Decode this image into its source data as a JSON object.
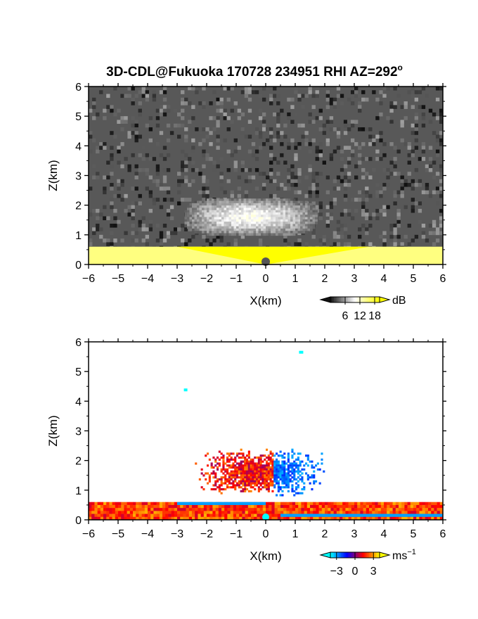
{
  "title": "3D-CDL@Fukuoka 170728 234951 RHI AZ=292",
  "title_superscript": "o",
  "chart_data": [
    {
      "type": "heatmap",
      "panel": "reflectivity",
      "xlabel": "X(km)",
      "ylabel": "Z(km)",
      "xlim": [
        -6,
        6
      ],
      "ylim": [
        0,
        6
      ],
      "xticks": [
        "-6",
        "-5",
        "-4",
        "-3",
        "-2",
        "-1",
        "0",
        "1",
        "2",
        "3",
        "4",
        "5",
        "6"
      ],
      "yticks": [
        "0",
        "1",
        "2",
        "3",
        "4",
        "5",
        "6"
      ],
      "colorbar": {
        "unit": "dB",
        "ticks": [
          "6",
          "12",
          "18"
        ],
        "range": [
          0,
          20
        ],
        "colors": [
          "#111111",
          "#ffffff",
          "#ffff00"
        ]
      },
      "features": [
        {
          "name": "noise background",
          "x": [
            -6,
            6
          ],
          "z": [
            0,
            6
          ],
          "value_db": 3
        },
        {
          "name": "cloud layer",
          "x": [
            -3,
            2
          ],
          "z": [
            0.9,
            2.3
          ],
          "value_db": 10
        },
        {
          "name": "boundary layer",
          "x": [
            -6,
            6
          ],
          "z": [
            0,
            0.6
          ],
          "value_db": 20
        }
      ]
    },
    {
      "type": "heatmap",
      "panel": "doppler velocity",
      "xlabel": "X(km)",
      "ylabel": "Z(km)",
      "xlim": [
        -6,
        6
      ],
      "ylim": [
        0,
        6
      ],
      "xticks": [
        "-6",
        "-5",
        "-4",
        "-3",
        "-2",
        "-1",
        "0",
        "1",
        "2",
        "3",
        "4",
        "5",
        "6"
      ],
      "yticks": [
        "0",
        "1",
        "2",
        "3",
        "4",
        "5",
        "6"
      ],
      "colorbar": {
        "unit": "ms",
        "unit_superscript": "-1",
        "ticks": [
          "-3",
          "0",
          "3"
        ],
        "range": [
          -4,
          4
        ],
        "colors": [
          "#00ffff",
          "#0000ff",
          "#ff0000",
          "#ffff00"
        ]
      },
      "features": [
        {
          "name": "positive velocity layer",
          "x": [
            -6,
            6
          ],
          "z": [
            0,
            0.6
          ],
          "velocity": 2
        },
        {
          "name": "negative velocity band",
          "x": [
            -3,
            0
          ],
          "z": [
            0.5,
            0.6
          ],
          "velocity": -3
        },
        {
          "name": "cloud region",
          "x": [
            -2.4,
            2
          ],
          "z": [
            0.8,
            2.4
          ],
          "velocity": 1.5
        }
      ]
    }
  ]
}
